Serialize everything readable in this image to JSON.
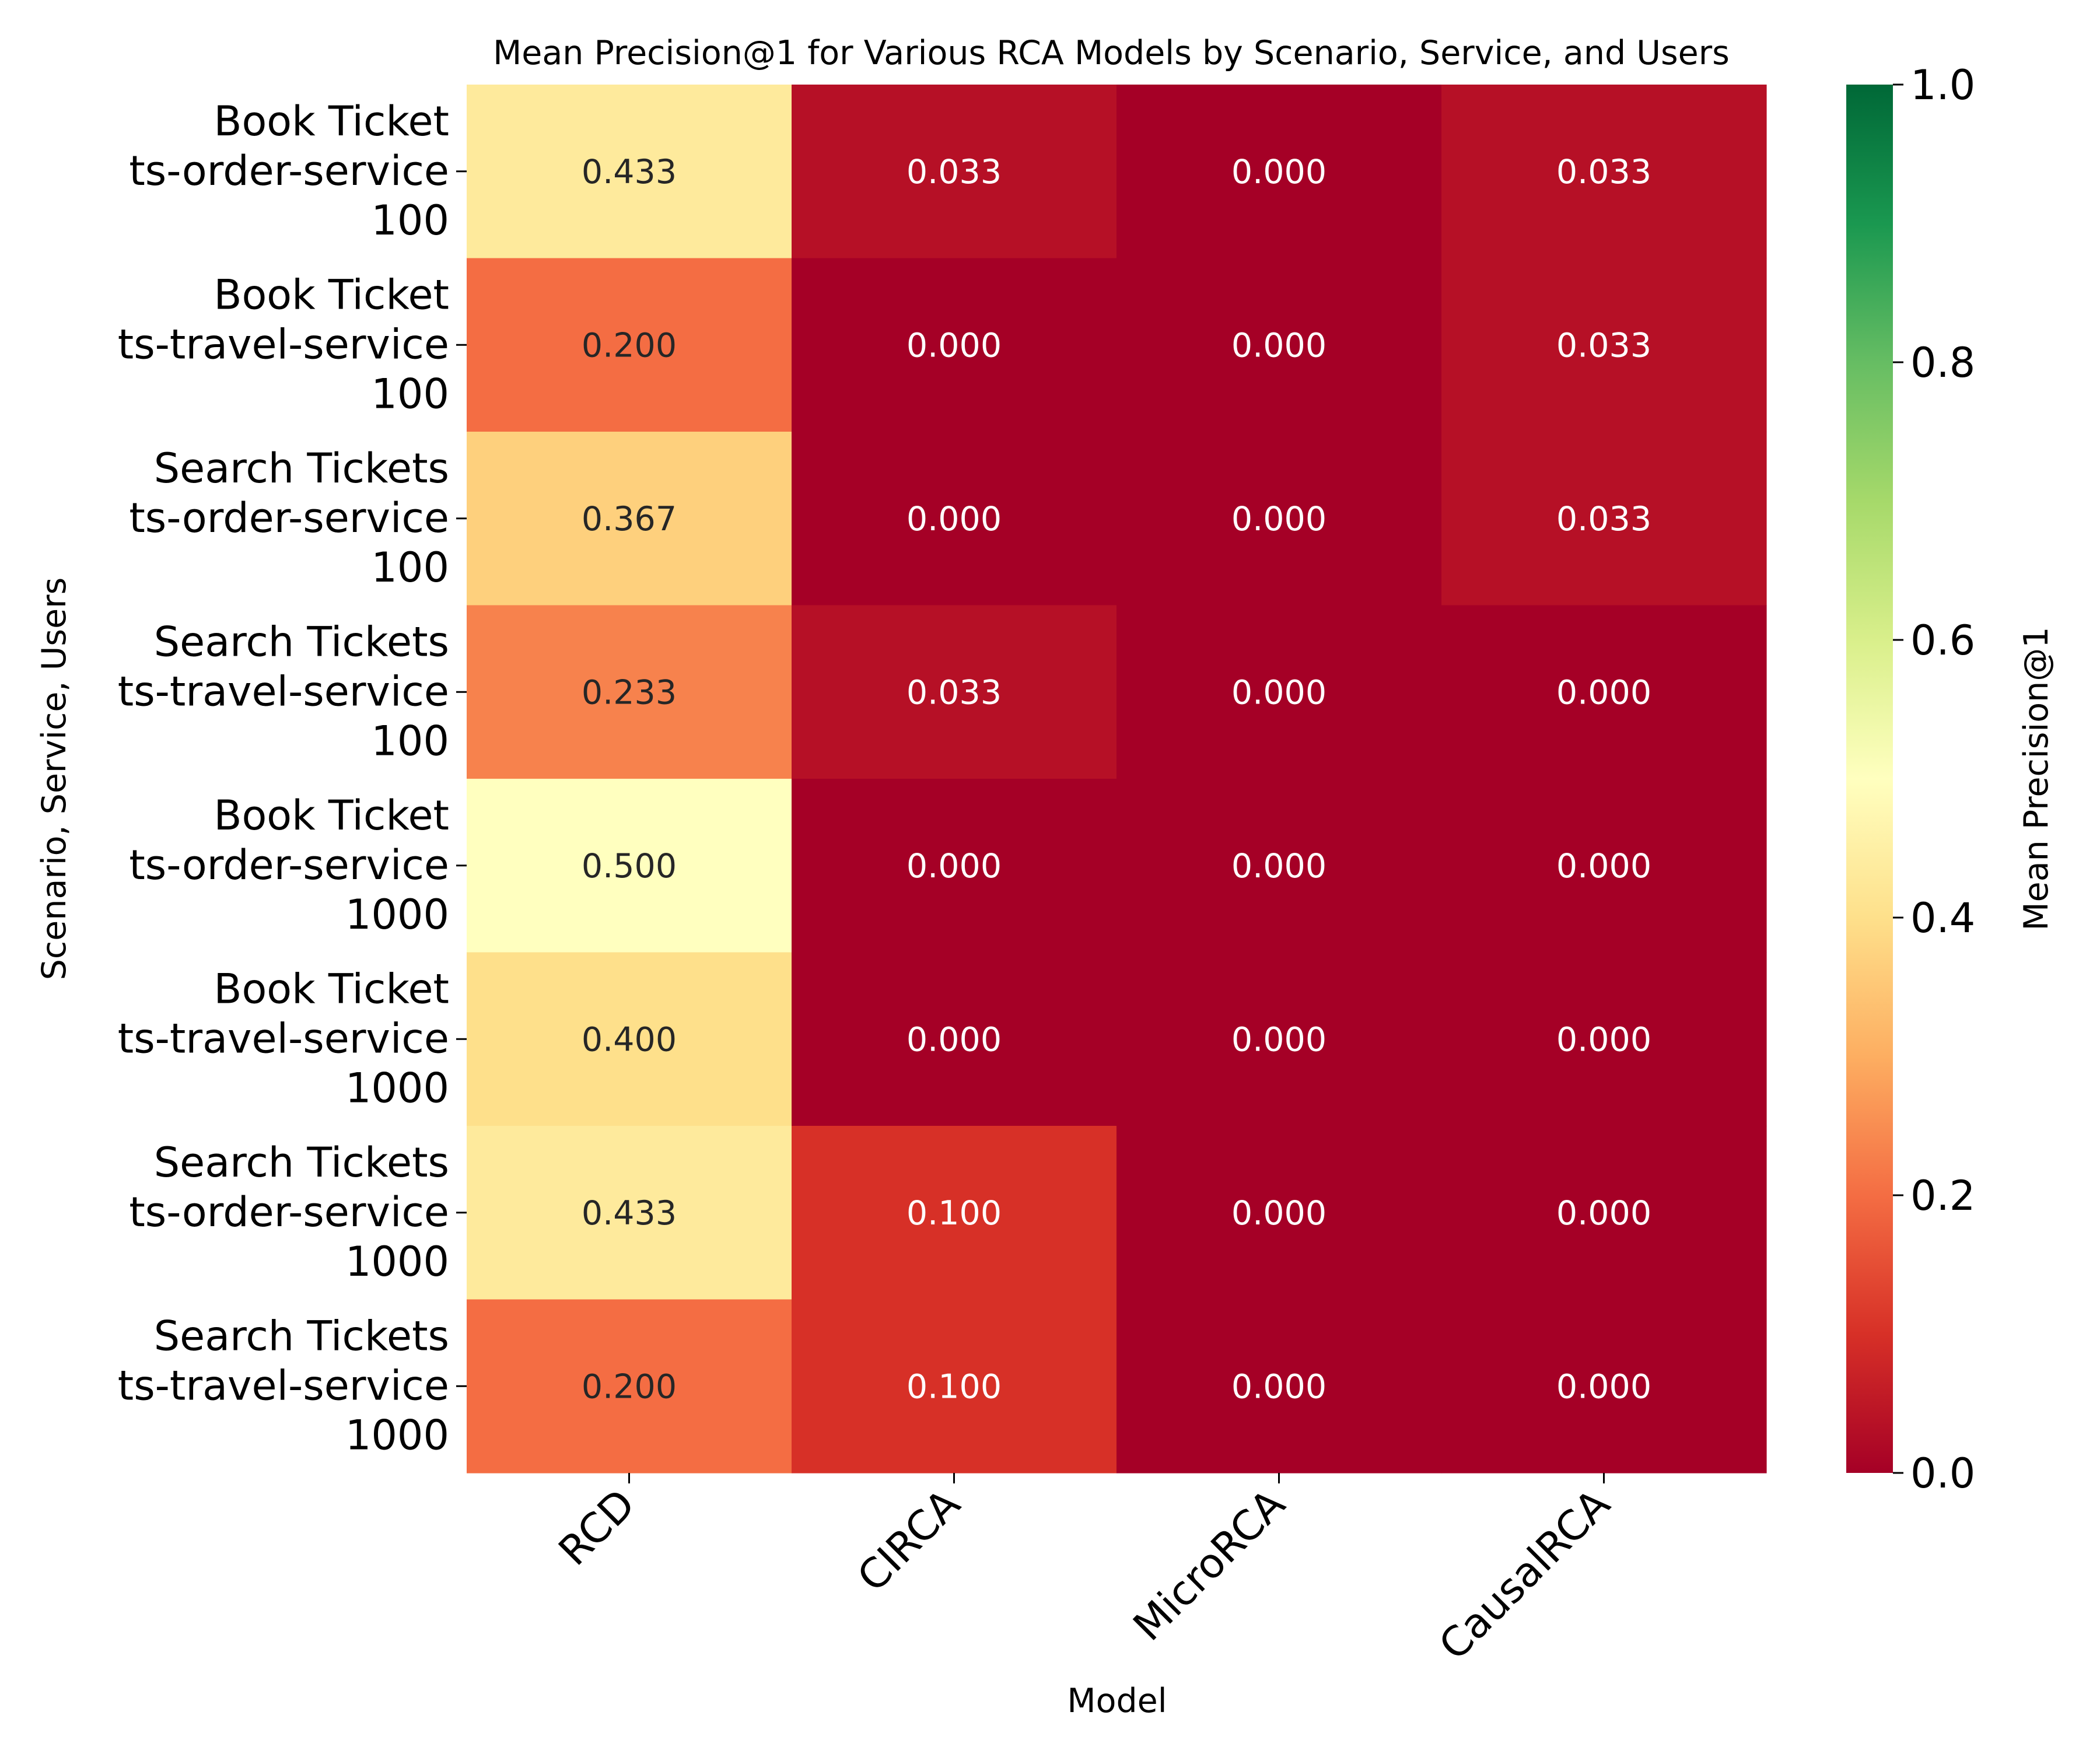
{
  "chart_data": {
    "type": "heatmap",
    "title": "Mean Precision@1 for Various RCA Models by Scenario, Service, and Users",
    "xlabel": "Model",
    "ylabel": "Scenario, Service, Users",
    "colorbar_label": "Mean Precision@1",
    "colormap": "RdYlGn",
    "vmin": 0.0,
    "vmax": 1.0,
    "colorbar_ticks": [
      "0.0",
      "0.2",
      "0.4",
      "0.6",
      "0.8",
      "1.0"
    ],
    "columns": [
      "RCD",
      "CIRCA",
      "MicroRCA",
      "CausalRCA"
    ],
    "rows": [
      [
        "Book Ticket",
        "ts-order-service",
        "100"
      ],
      [
        "Book Ticket",
        "ts-travel-service",
        "100"
      ],
      [
        "Search Tickets",
        "ts-order-service",
        "100"
      ],
      [
        "Search Tickets",
        "ts-travel-service",
        "100"
      ],
      [
        "Book Ticket",
        "ts-order-service",
        "1000"
      ],
      [
        "Book Ticket",
        "ts-travel-service",
        "1000"
      ],
      [
        "Search Tickets",
        "ts-order-service",
        "1000"
      ],
      [
        "Search Tickets",
        "ts-travel-service",
        "1000"
      ]
    ],
    "values": [
      [
        0.433,
        0.033,
        0.0,
        0.033
      ],
      [
        0.2,
        0.0,
        0.0,
        0.033
      ],
      [
        0.367,
        0.0,
        0.0,
        0.033
      ],
      [
        0.233,
        0.033,
        0.0,
        0.0
      ],
      [
        0.5,
        0.0,
        0.0,
        0.0
      ],
      [
        0.4,
        0.0,
        0.0,
        0.0
      ],
      [
        0.433,
        0.1,
        0.0,
        0.0
      ],
      [
        0.2,
        0.1,
        0.0,
        0.0
      ]
    ],
    "value_format": "0.000"
  }
}
